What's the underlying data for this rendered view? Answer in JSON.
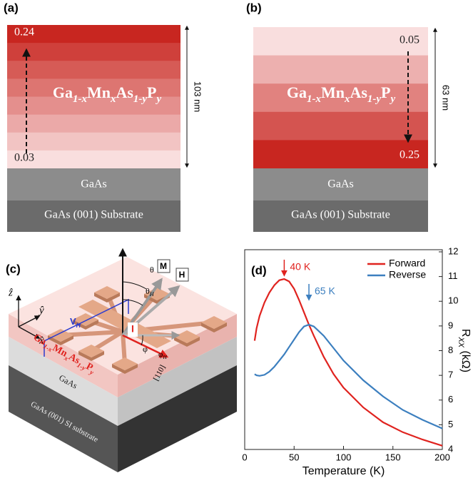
{
  "panel_a": {
    "label": "(a)",
    "top_value": "0.24",
    "bottom_value": "0.03",
    "formula": [
      {
        "text": "Ga"
      },
      {
        "text": "1-x",
        "sub": true
      },
      {
        "text": "Mn"
      },
      {
        "text": "x",
        "sub": true
      },
      {
        "text": "As"
      },
      {
        "text": "1-y",
        "sub": true
      },
      {
        "text": "P"
      },
      {
        "text": "y",
        "sub": true
      }
    ],
    "thickness": "103 nm",
    "buffer": "GaAs",
    "substrate": "GaAs (001) Substrate"
  },
  "panel_b": {
    "label": "(b)",
    "top_value": "0.05",
    "bottom_value": "0.25",
    "formula": [
      {
        "text": "Ga"
      },
      {
        "text": "1-x",
        "sub": true
      },
      {
        "text": "Mn"
      },
      {
        "text": "x",
        "sub": true
      },
      {
        "text": "As"
      },
      {
        "text": "1-y",
        "sub": true
      },
      {
        "text": "P"
      },
      {
        "text": "y",
        "sub": true
      }
    ],
    "thickness": "63 nm",
    "buffer": "GaAs",
    "substrate": "GaAs (001) Substrate"
  },
  "panel_c": {
    "label": "(c)",
    "z_axis": "ẑ",
    "y_axis": "ŷ",
    "x_axis": "x̂",
    "hall_voltage": [
      {
        "text": "V"
      },
      {
        "text": "H",
        "sub": true
      }
    ],
    "theta": "θ",
    "theta_h": [
      {
        "text": "θ"
      },
      {
        "text": "H",
        "sub": true
      }
    ],
    "magnetization": "M",
    "field": "H",
    "current": "I",
    "phi": "φ",
    "phi_h": [
      {
        "text": "φ"
      },
      {
        "text": "H",
        "sub": true
      }
    ],
    "direction": "[110]",
    "formula": [
      {
        "text": "Ga"
      },
      {
        "text": "1-x",
        "sub": true
      },
      {
        "text": "Mn"
      },
      {
        "text": "x",
        "sub": true
      },
      {
        "text": "As"
      },
      {
        "text": "1-y",
        "sub": true
      },
      {
        "text": "P"
      },
      {
        "text": "y",
        "sub": true
      }
    ],
    "buffer": "GaAs",
    "substrate": "GaAs (001) SI substrate"
  },
  "chart_data": {
    "type": "line",
    "panel_label": "(d)",
    "x_label": "Temperature (K)",
    "y_label": [
      {
        "text": "R"
      },
      {
        "text": "XX",
        "sub": true
      },
      {
        "text": " (kΩ)"
      }
    ],
    "y_axis_side": "right",
    "x": [
      10,
      12,
      15,
      20,
      25,
      30,
      35,
      40,
      45,
      50,
      55,
      60,
      65,
      70,
      80,
      90,
      100,
      120,
      140,
      160,
      180,
      200
    ],
    "series": [
      {
        "name": "Forward",
        "color": "#e0231f",
        "values": [
          8.4,
          8.9,
          9.4,
          9.95,
          10.35,
          10.65,
          10.85,
          10.9,
          10.8,
          10.5,
          10.05,
          9.55,
          9.05,
          8.6,
          7.75,
          7.05,
          6.5,
          5.7,
          5.1,
          4.7,
          4.4,
          4.15
        ]
      },
      {
        "name": "Reverse",
        "color": "#3c7fbf",
        "values": [
          7.05,
          7.0,
          6.98,
          7.02,
          7.15,
          7.35,
          7.6,
          7.85,
          8.15,
          8.45,
          8.75,
          8.98,
          9.05,
          8.98,
          8.6,
          8.1,
          7.6,
          6.8,
          6.15,
          5.6,
          5.2,
          4.85
        ]
      }
    ],
    "annotations": [
      {
        "label": "40 K",
        "x": 40,
        "color": "#e0231f"
      },
      {
        "label": "65 K",
        "x": 65,
        "color": "#3c7fbf"
      }
    ],
    "xlim": [
      0,
      200
    ],
    "xticks": [
      0,
      50,
      100,
      150,
      200
    ],
    "ylim": [
      4,
      12
    ],
    "yticks": [
      4,
      5,
      6,
      7,
      8,
      9,
      10,
      11,
      12
    ],
    "legend": "upper right"
  }
}
